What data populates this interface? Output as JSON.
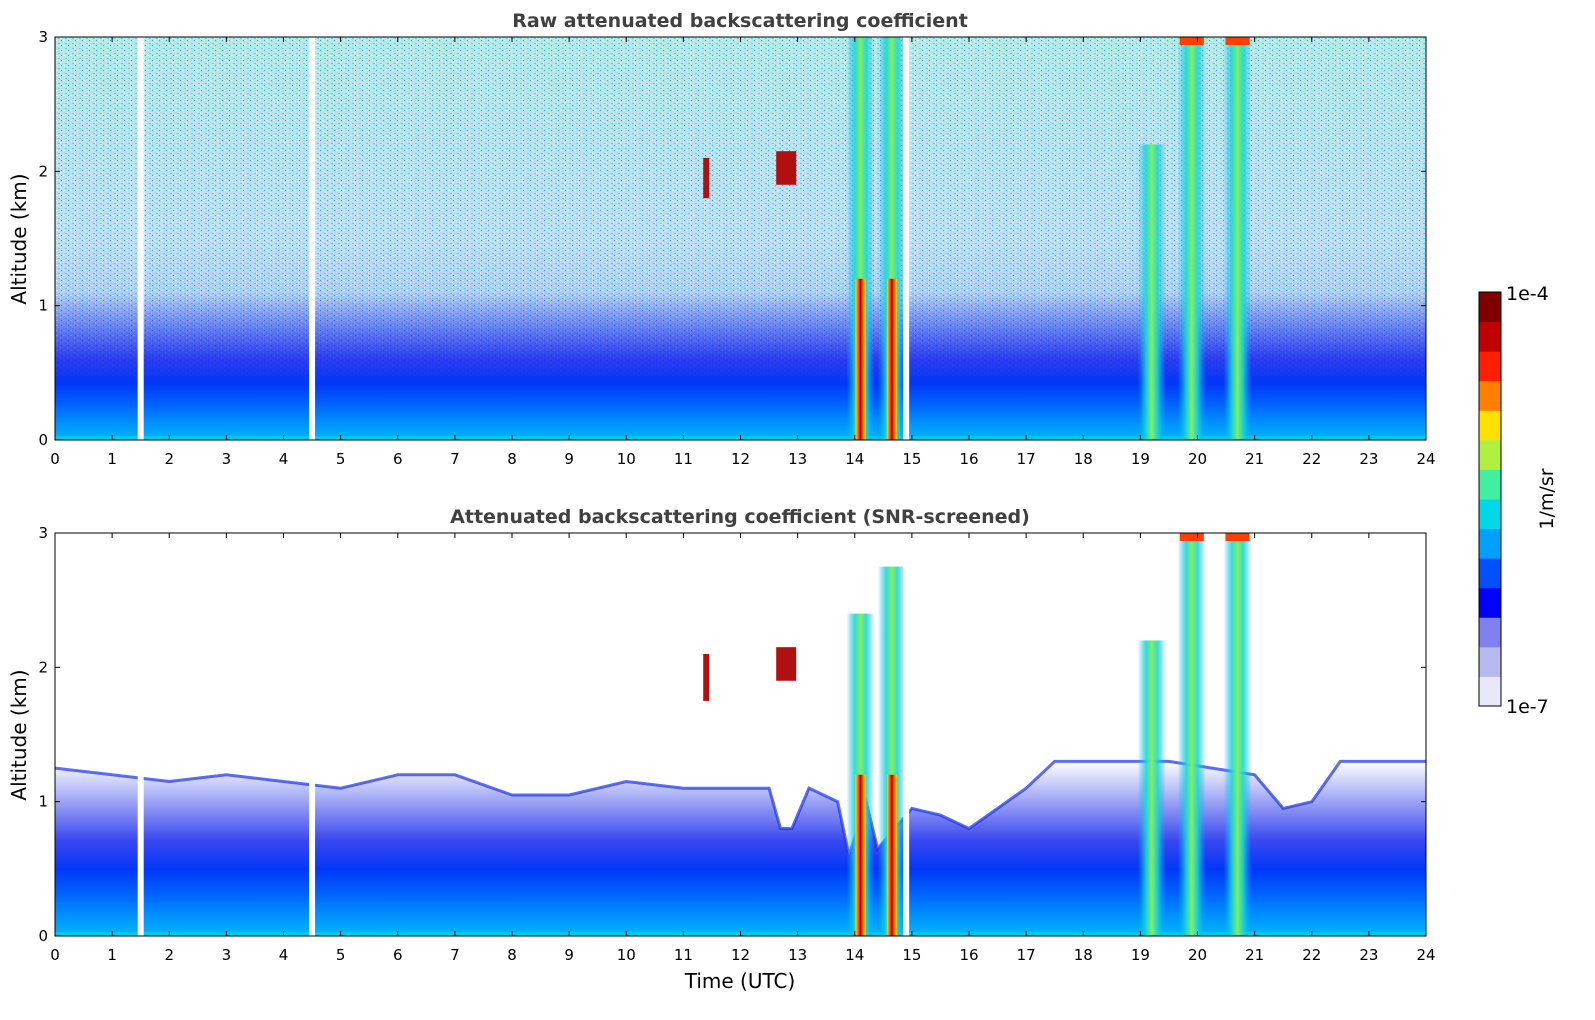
{
  "chart_data": [
    {
      "type": "heatmap",
      "title": "Raw attenuated backscattering coefficient",
      "xlabel": "",
      "ylabel": "Altitude (km)",
      "xlim": [
        0,
        24
      ],
      "ylim": [
        0,
        3
      ],
      "x_ticks": [
        "0",
        "1",
        "2",
        "3",
        "4",
        "5",
        "6",
        "7",
        "8",
        "9",
        "10",
        "11",
        "12",
        "13",
        "14",
        "15",
        "16",
        "17",
        "18",
        "19",
        "20",
        "21",
        "22",
        "23",
        "24"
      ],
      "y_ticks": [
        "0",
        "1",
        "2",
        "3"
      ],
      "screened": false,
      "gaps_hours": [
        1.5,
        4.5,
        14.9
      ],
      "features": [
        {
          "kind": "aerosol_layer",
          "x_start": 0,
          "x_end": 24,
          "top_km": 1.1
        },
        {
          "kind": "cloud",
          "x": 11.4,
          "bottom_km": 1.8,
          "top_km": 2.1
        },
        {
          "kind": "cloud",
          "x": 12.8,
          "bottom_km": 1.9,
          "top_km": 2.15
        },
        {
          "kind": "precipitation",
          "x": 14.1,
          "top_km": 3.0
        },
        {
          "kind": "precipitation",
          "x": 14.65,
          "top_km": 3.0
        },
        {
          "kind": "precipitation",
          "x": 19.2,
          "top_km": 2.2
        },
        {
          "kind": "precipitation",
          "x": 19.9,
          "top_km": 3.0
        },
        {
          "kind": "precipitation",
          "x": 20.7,
          "top_km": 3.0
        }
      ]
    },
    {
      "type": "heatmap",
      "title": "Attenuated backscattering coefficient (SNR-screened)",
      "xlabel": "Time (UTC)",
      "ylabel": "Altitude (km)",
      "xlim": [
        0,
        24
      ],
      "ylim": [
        0,
        3
      ],
      "x_ticks": [
        "0",
        "1",
        "2",
        "3",
        "4",
        "5",
        "6",
        "7",
        "8",
        "9",
        "10",
        "11",
        "12",
        "13",
        "14",
        "15",
        "16",
        "17",
        "18",
        "19",
        "20",
        "21",
        "22",
        "23",
        "24"
      ],
      "y_ticks": [
        "0",
        "1",
        "2",
        "3"
      ],
      "screened": true,
      "gaps_hours": [
        1.5,
        4.5,
        14.9
      ],
      "boundary_layer_top_km": [
        [
          0,
          1.25
        ],
        [
          1,
          1.2
        ],
        [
          2,
          1.15
        ],
        [
          3,
          1.2
        ],
        [
          4,
          1.15
        ],
        [
          5,
          1.1
        ],
        [
          6,
          1.2
        ],
        [
          7,
          1.2
        ],
        [
          8,
          1.05
        ],
        [
          9,
          1.05
        ],
        [
          10,
          1.15
        ],
        [
          11,
          1.1
        ],
        [
          12,
          1.1
        ],
        [
          12.5,
          1.1
        ],
        [
          12.7,
          0.8
        ],
        [
          12.9,
          0.8
        ],
        [
          13.2,
          1.1
        ],
        [
          13.7,
          1.0
        ],
        [
          13.9,
          0.6
        ],
        [
          14.2,
          1.0
        ],
        [
          14.4,
          0.65
        ],
        [
          15,
          0.95
        ],
        [
          15.5,
          0.9
        ],
        [
          16,
          0.8
        ],
        [
          16.5,
          0.95
        ],
        [
          17,
          1.1
        ],
        [
          17.5,
          1.3
        ],
        [
          18,
          1.3
        ],
        [
          19,
          1.3
        ],
        [
          19.5,
          1.3
        ],
        [
          21,
          1.2
        ],
        [
          21.5,
          0.95
        ],
        [
          22,
          1.0
        ],
        [
          22.5,
          1.3
        ],
        [
          23,
          1.3
        ],
        [
          24,
          1.3
        ]
      ],
      "features": [
        {
          "kind": "cloud",
          "x": 11.4,
          "bottom_km": 1.75,
          "top_km": 2.1
        },
        {
          "kind": "cloud",
          "x": 12.8,
          "bottom_km": 1.9,
          "top_km": 2.15
        },
        {
          "kind": "precipitation",
          "x": 14.1,
          "top_km": 2.4
        },
        {
          "kind": "precipitation",
          "x": 14.65,
          "top_km": 2.75
        },
        {
          "kind": "precipitation",
          "x": 19.2,
          "top_km": 2.2
        },
        {
          "kind": "precipitation",
          "x": 19.9,
          "top_km": 3.0
        },
        {
          "kind": "precipitation",
          "x": 20.7,
          "top_km": 3.0
        }
      ]
    }
  ],
  "colorbar": {
    "label": "1/m/sr",
    "min_label": "1e-7",
    "max_label": "1e-4",
    "scale": "log",
    "colors": [
      "#e8e8f8",
      "#b8b8f0",
      "#8080f0",
      "#0000ff",
      "#0050ff",
      "#00a0ff",
      "#00d8e8",
      "#40f0a0",
      "#b0f040",
      "#ffe000",
      "#ff8000",
      "#ff2000",
      "#c00000",
      "#800000"
    ]
  }
}
